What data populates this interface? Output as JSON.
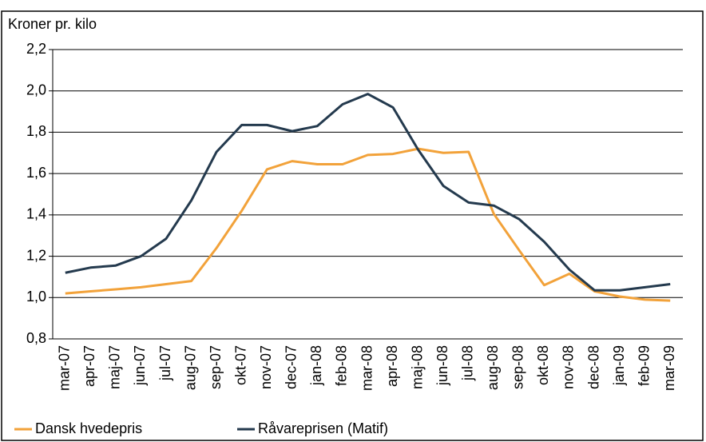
{
  "chart_data": {
    "type": "line",
    "y_axis_label": "Kroner pr. kilo",
    "categories": [
      "mar-07",
      "apr-07",
      "maj-07",
      "jun-07",
      "jul-07",
      "aug-07",
      "sep-07",
      "okt-07",
      "nov-07",
      "dec-07",
      "jan-08",
      "feb-08",
      "mar-08",
      "apr-08",
      "maj-08",
      "jun-08",
      "jul-08",
      "aug-08",
      "sep-08",
      "okt-08",
      "nov-08",
      "dec-08",
      "jan-09",
      "feb-09",
      "mar-09"
    ],
    "series": [
      {
        "name": "Dansk hvedepris",
        "color": "#f2a23a",
        "values": [
          1.02,
          1.03,
          1.04,
          1.05,
          1.065,
          1.08,
          1.24,
          1.42,
          1.62,
          1.66,
          1.645,
          1.645,
          1.69,
          1.695,
          1.72,
          1.7,
          1.705,
          1.405,
          1.23,
          1.06,
          1.115,
          1.03,
          1.005,
          0.99,
          0.985
        ]
      },
      {
        "name": "Råvareprisen (Matif)",
        "color": "#243a4e",
        "values": [
          1.12,
          1.145,
          1.155,
          1.2,
          1.285,
          1.47,
          1.705,
          1.835,
          1.835,
          1.805,
          1.83,
          1.935,
          1.985,
          1.92,
          1.715,
          1.54,
          1.46,
          1.445,
          1.38,
          1.27,
          1.135,
          1.035,
          1.035,
          1.05,
          1.065
        ]
      }
    ],
    "ylim": [
      0.8,
      2.2
    ],
    "yticks": [
      {
        "value": 0.8,
        "label": "0,8"
      },
      {
        "value": 1.0,
        "label": "1,0"
      },
      {
        "value": 1.2,
        "label": "1,2"
      },
      {
        "value": 1.4,
        "label": "1,4"
      },
      {
        "value": 1.6,
        "label": "1,6"
      },
      {
        "value": 1.8,
        "label": "1,8"
      },
      {
        "value": 2.0,
        "label": "2,0"
      },
      {
        "value": 2.2,
        "label": "2,2"
      }
    ],
    "grid": true
  }
}
